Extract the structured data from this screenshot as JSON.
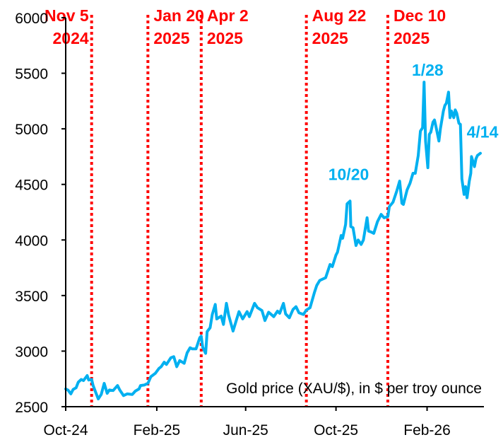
{
  "chart_data": {
    "type": "line",
    "title": "",
    "xlabel": "",
    "ylabel": "",
    "ylim": [
      2500,
      6000
    ],
    "yticks": [
      2500,
      3000,
      3500,
      4000,
      4500,
      5000,
      5500,
      6000
    ],
    "xlim": [
      "2024-10-01",
      "2026-04-14"
    ],
    "xticks": [
      {
        "date": "2024-10-01",
        "label": "Oct-24"
      },
      {
        "date": "2025-02-01",
        "label": "Feb-25"
      },
      {
        "date": "2025-06-01",
        "label": "Jun-25"
      },
      {
        "date": "2025-10-01",
        "label": "Oct-25"
      },
      {
        "date": "2026-02-01",
        "label": "Feb-26"
      }
    ],
    "grid": false,
    "legend_text": "Gold price (XAU/$), in $ per troy ounce",
    "legend_placement": "bottom-right",
    "line_color": "#00b0f0",
    "event_color": "#ff0000",
    "events": [
      {
        "date": "2024-11-05",
        "line1": "Nov 5",
        "line2": "2024"
      },
      {
        "date": "2025-01-20",
        "line1": "Jan 20",
        "line2": "2025"
      },
      {
        "date": "2025-04-02",
        "line1": "Apr 2",
        "line2": "2025"
      },
      {
        "date": "2025-08-22",
        "line1": "Aug 22",
        "line2": "2025"
      },
      {
        "date": "2025-12-10",
        "line1": "Dec 10",
        "line2": "2025"
      }
    ],
    "annotations": [
      {
        "date": "2025-10-20",
        "label": "10/20"
      },
      {
        "date": "2026-01-28",
        "label": "1/28"
      },
      {
        "date": "2026-04-14",
        "label": "4/14"
      }
    ],
    "series": [
      {
        "x": [
          "2024-10-01",
          "2024-10-04",
          "2024-10-08",
          "2024-10-11",
          "2024-10-15",
          "2024-10-18",
          "2024-10-22",
          "2024-10-25",
          "2024-10-30",
          "2024-11-01",
          "2024-11-05",
          "2024-11-07",
          "2024-11-11",
          "2024-11-14",
          "2024-11-18",
          "2024-11-22",
          "2024-11-26",
          "2024-11-29",
          "2024-12-04",
          "2024-12-10",
          "2024-12-13",
          "2024-12-18",
          "2024-12-23",
          "2024-12-30",
          "2025-01-03",
          "2025-01-08",
          "2025-01-10",
          "2025-01-15",
          "2025-01-20",
          "2025-01-24",
          "2025-01-30",
          "2025-02-04",
          "2025-02-07",
          "2025-02-11",
          "2025-02-14",
          "2025-02-20",
          "2025-02-24",
          "2025-02-28",
          "2025-03-04",
          "2025-03-10",
          "2025-03-14",
          "2025-03-18",
          "2025-03-21",
          "2025-03-26",
          "2025-03-31",
          "2025-04-02",
          "2025-04-04",
          "2025-04-08",
          "2025-04-10",
          "2025-04-14",
          "2025-04-17",
          "2025-04-21",
          "2025-04-23",
          "2025-04-29",
          "2025-05-02",
          "2025-05-06",
          "2025-05-09",
          "2025-05-15",
          "2025-05-20",
          "2025-05-23",
          "2025-05-28",
          "2025-06-03",
          "2025-06-06",
          "2025-06-13",
          "2025-06-17",
          "2025-06-23",
          "2025-06-27",
          "2025-07-02",
          "2025-07-09",
          "2025-07-14",
          "2025-07-17",
          "2025-07-22",
          "2025-07-25",
          "2025-07-30",
          "2025-08-04",
          "2025-08-08",
          "2025-08-12",
          "2025-08-18",
          "2025-08-22",
          "2025-08-27",
          "2025-09-02",
          "2025-09-05",
          "2025-09-09",
          "2025-09-12",
          "2025-09-17",
          "2025-09-23",
          "2025-09-26",
          "2025-10-01",
          "2025-10-03",
          "2025-10-08",
          "2025-10-10",
          "2025-10-14",
          "2025-10-16",
          "2025-10-20",
          "2025-10-21",
          "2025-10-24",
          "2025-10-28",
          "2025-10-31",
          "2025-11-04",
          "2025-11-07",
          "2025-11-12",
          "2025-11-14",
          "2025-11-18",
          "2025-11-21",
          "2025-11-26",
          "2025-12-01",
          "2025-12-05",
          "2025-12-10",
          "2025-12-12",
          "2025-12-17",
          "2025-12-22",
          "2025-12-26",
          "2025-12-29",
          "2025-12-31",
          "2026-01-05",
          "2026-01-09",
          "2026-01-13",
          "2026-01-16",
          "2026-01-20",
          "2026-01-23",
          "2026-01-26",
          "2026-01-28",
          "2026-01-30",
          "2026-02-02",
          "2026-02-04",
          "2026-02-06",
          "2026-02-09",
          "2026-02-11",
          "2026-02-13",
          "2026-02-17",
          "2026-02-19",
          "2026-02-23",
          "2026-02-25",
          "2026-02-27",
          "2026-03-02",
          "2026-03-04",
          "2026-03-06",
          "2026-03-09",
          "2026-03-11",
          "2026-03-13",
          "2026-03-16",
          "2026-03-18",
          "2026-03-20",
          "2026-03-23",
          "2026-03-25",
          "2026-03-27",
          "2026-03-30",
          "2026-04-01",
          "2026-04-02",
          "2026-04-06",
          "2026-04-08",
          "2026-04-10",
          "2026-04-14"
        ],
        "y": [
          2660,
          2650,
          2615,
          2655,
          2670,
          2720,
          2745,
          2735,
          2780,
          2740,
          2745,
          2690,
          2620,
          2570,
          2610,
          2710,
          2620,
          2650,
          2645,
          2690,
          2650,
          2600,
          2615,
          2610,
          2640,
          2660,
          2690,
          2695,
          2710,
          2770,
          2800,
          2845,
          2860,
          2900,
          2880,
          2940,
          2950,
          2860,
          2915,
          2890,
          2985,
          3030,
          3020,
          3020,
          3120,
          3135,
          3035,
          2980,
          3175,
          3210,
          3330,
          3420,
          3290,
          3315,
          3240,
          3430,
          3325,
          3180,
          3290,
          3355,
          3290,
          3355,
          3310,
          3430,
          3390,
          3365,
          3275,
          3350,
          3310,
          3360,
          3340,
          3430,
          3335,
          3300,
          3375,
          3400,
          3345,
          3330,
          3370,
          3390,
          3530,
          3590,
          3635,
          3645,
          3660,
          3780,
          3760,
          3865,
          3890,
          4040,
          4015,
          4140,
          4325,
          4350,
          4120,
          4110,
          3950,
          4000,
          3960,
          4000,
          4200,
          4080,
          4070,
          4060,
          4165,
          4230,
          4200,
          4210,
          4300,
          4340,
          4440,
          4530,
          4330,
          4320,
          4450,
          4510,
          4600,
          4600,
          4760,
          4980,
          5010,
          5420,
          4890,
          4650,
          4950,
          4970,
          5060,
          5080,
          5020,
          4890,
          5000,
          5160,
          5210,
          5230,
          5330,
          5100,
          5160,
          5100,
          5170,
          5140,
          5050,
          5040,
          4550,
          4410,
          4480,
          4380,
          4530,
          4600,
          4750,
          4660,
          4730,
          4760,
          4780
        ]
      }
    ]
  }
}
